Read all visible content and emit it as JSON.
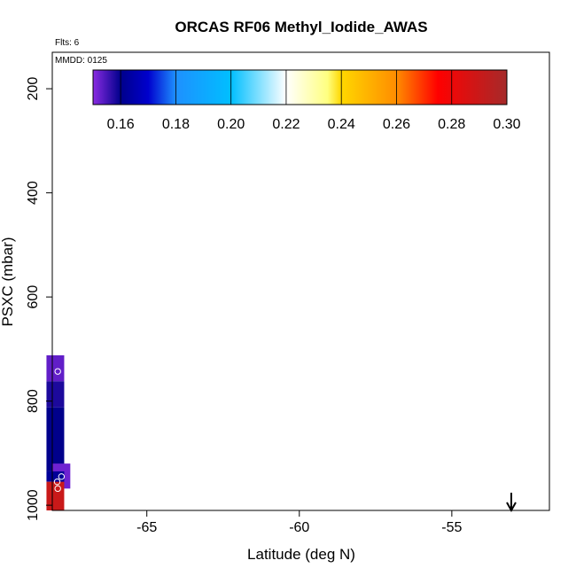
{
  "chart_data": {
    "type": "scatter",
    "title": "ORCAS RF06 Methyl_Iodide_AWAS",
    "annotations": {
      "flights": "Flts: 6",
      "date": "MMDD: 0125"
    },
    "xlabel": "Latitude (deg N)",
    "ylabel": "PSXC (mbar)",
    "xlim": [
      -68.1,
      -51.8
    ],
    "ylim": [
      1010,
      130
    ],
    "y_axis_inverted": true,
    "grid": false,
    "x_ticks": [
      "-65",
      "-60",
      "-55"
    ],
    "x_tick_values": [
      -65,
      -60,
      -55
    ],
    "y_ticks": [
      "200",
      "400",
      "600",
      "800",
      "1000"
    ],
    "y_tick_values": [
      200,
      400,
      600,
      800,
      1000
    ],
    "colorbar": {
      "position": "top",
      "min": 0.15,
      "max": 0.3,
      "tick_labels": [
        "0.16",
        "0.18",
        "0.20",
        "0.22",
        "0.24",
        "0.26",
        "0.28",
        "0.30"
      ],
      "tick_values": [
        0.16,
        0.18,
        0.2,
        0.22,
        0.24,
        0.26,
        0.28,
        0.3
      ],
      "stops": [
        {
          "v": 0.15,
          "c": "#8a2be2"
        },
        {
          "v": 0.16,
          "c": "#00008b"
        },
        {
          "v": 0.17,
          "c": "#0000cd"
        },
        {
          "v": 0.18,
          "c": "#1e90ff"
        },
        {
          "v": 0.2,
          "c": "#00bfff"
        },
        {
          "v": 0.22,
          "c": "#ffffff"
        },
        {
          "v": 0.235,
          "c": "#ffff80"
        },
        {
          "v": 0.24,
          "c": "#ffd700"
        },
        {
          "v": 0.26,
          "c": "#ff8c00"
        },
        {
          "v": 0.275,
          "c": "#ff0000"
        },
        {
          "v": 0.3,
          "c": "#a52a2a"
        }
      ]
    },
    "profile_segments": [
      {
        "lat": -68.0,
        "p_top": 712,
        "p_bot": 762,
        "value": 0.153
      },
      {
        "lat": -68.0,
        "p_top": 762,
        "p_bot": 812,
        "value": 0.158
      },
      {
        "lat": -68.0,
        "p_top": 812,
        "p_bot": 935,
        "value": 0.16
      },
      {
        "lat": -67.8,
        "p_top": 920,
        "p_bot": 968,
        "value": 0.152
      },
      {
        "lat": -68.0,
        "p_top": 935,
        "p_bot": 955,
        "value": 0.162
      },
      {
        "lat": -68.0,
        "p_top": 955,
        "p_bot": 1010,
        "value": 0.29
      }
    ],
    "points": [
      {
        "lat": -67.92,
        "p": 743
      },
      {
        "lat": -67.8,
        "p": 945
      },
      {
        "lat": -67.94,
        "p": 955
      },
      {
        "lat": -67.92,
        "p": 968
      }
    ],
    "arrow": {
      "lat": -53.05,
      "direction": "down"
    }
  }
}
